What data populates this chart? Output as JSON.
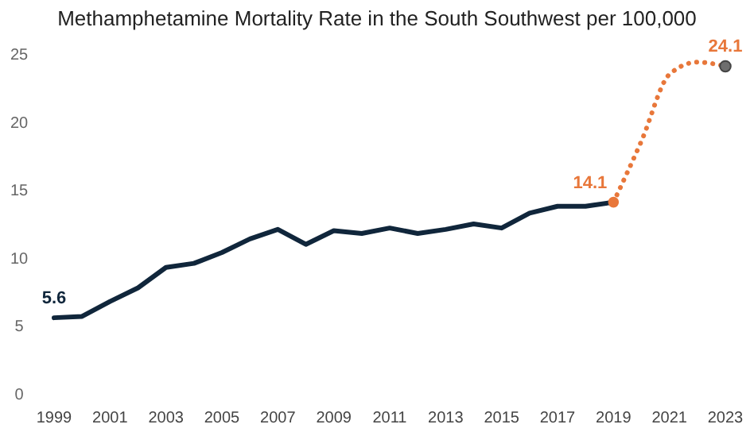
{
  "chart_data": {
    "type": "line",
    "title": "Methamphetamine Mortality Rate in the South Southwest per 100,000",
    "xlim": [
      1999,
      2023
    ],
    "xticks": [
      1999,
      2001,
      2003,
      2005,
      2007,
      2009,
      2011,
      2013,
      2015,
      2017,
      2019,
      2021,
      2023
    ],
    "ylim": [
      0,
      25
    ],
    "yticks": [
      0,
      5,
      10,
      15,
      20,
      25
    ],
    "grid": false,
    "marker": "none",
    "series": [
      {
        "color": "#10263b",
        "line_style": "solid",
        "x": [
          1999,
          2000,
          2001,
          2002,
          2003,
          2004,
          2005,
          2006,
          2007,
          2008,
          2009,
          2010,
          2011,
          2012,
          2013,
          2014,
          2015,
          2016,
          2017,
          2018,
          2019
        ],
        "values": [
          5.6,
          5.7,
          6.8,
          7.8,
          9.3,
          9.6,
          10.4,
          11.4,
          12.1,
          11.0,
          12.0,
          11.8,
          12.2,
          11.8,
          12.1,
          12.5,
          12.2,
          13.3,
          13.8,
          13.8,
          14.1
        ]
      },
      {
        "color": "#e8773a",
        "line_style": "dotted",
        "x": [
          2019,
          2020,
          2021,
          2022,
          2023
        ],
        "values": [
          14.1,
          18.6,
          23.5,
          24.4,
          24.1
        ]
      },
      {
        "type": "scatter",
        "marker": "circle",
        "x": [
          2019,
          2023
        ],
        "values": [
          14.1,
          24.1
        ],
        "colors": [
          "#e8773a",
          "#6e6e6e"
        ]
      }
    ],
    "annotations": [
      {
        "text": "5.6",
        "x": 1999,
        "y": 5.6
      },
      {
        "text": "14.1",
        "x": 2019,
        "y": 14.1
      },
      {
        "text": "24.1",
        "x": 2023,
        "y": 24.1
      }
    ]
  }
}
